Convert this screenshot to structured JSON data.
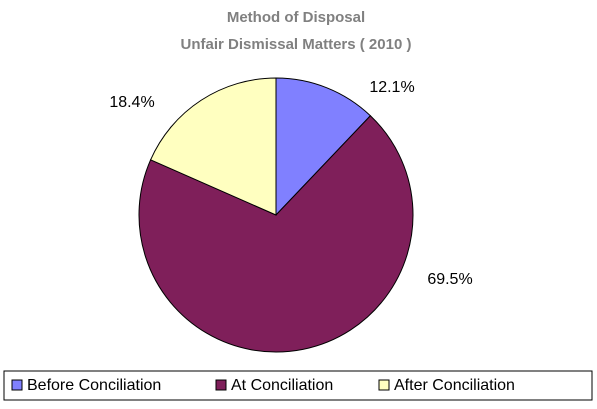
{
  "chart_data": {
    "type": "pie",
    "title": [
      "Method of Disposal",
      "Unfair Dismissal Matters ( 2010 )"
    ],
    "categories": [
      "Before Conciliation",
      "At Conciliation",
      "After Conciliation"
    ],
    "values": [
      12.1,
      69.5,
      18.4
    ],
    "value_labels": [
      "12.1%",
      "69.5%",
      "18.4%"
    ],
    "colors": [
      "#8080ff",
      "#7f1f5a",
      "#ffffc0"
    ],
    "legend": "bottom"
  }
}
